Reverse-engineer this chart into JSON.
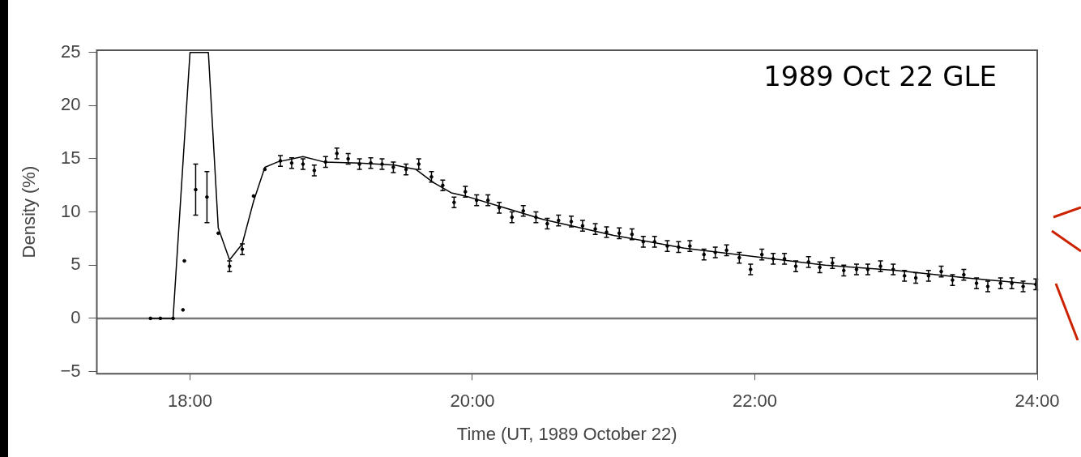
{
  "chart_data": {
    "type": "scatter",
    "xlabel": "Time (UT, 1989 October 22)",
    "ylabel": "Density (%)",
    "annotations": [
      "1989 Oct 22 GLE"
    ],
    "xlim": [
      17.34,
      24
    ],
    "ylim": [
      -5.2,
      25.2
    ],
    "xticks": [
      {
        "value": 18,
        "label": "18:00"
      },
      {
        "value": 20,
        "label": "20:00"
      },
      {
        "value": 22,
        "label": "22:00"
      },
      {
        "value": 24,
        "label": "24:00"
      }
    ],
    "yticks": [
      -5,
      0,
      5,
      10,
      15,
      20,
      25
    ],
    "grid": false,
    "legend": false,
    "ref_lines": [
      {
        "axis": "y",
        "value": 0,
        "color": "#777777"
      }
    ],
    "series": [
      {
        "color": "#000000",
        "marker": "circle",
        "x": [
          17.72,
          17.79,
          17.88,
          17.95,
          17.96,
          18.04,
          18.12,
          18.2,
          18.28,
          18.37,
          18.45,
          18.53,
          18.64,
          18.72,
          18.8,
          18.88,
          18.96,
          19.04,
          19.12,
          19.2,
          19.28,
          19.36,
          19.44,
          19.53,
          19.62,
          19.71,
          19.79,
          19.87,
          19.95,
          20.03,
          20.11,
          20.19,
          20.28,
          20.36,
          20.45,
          20.53,
          20.61,
          20.7,
          20.78,
          20.87,
          20.95,
          21.04,
          21.13,
          21.21,
          21.29,
          21.38,
          21.46,
          21.54,
          21.64,
          21.72,
          21.8,
          21.89,
          21.97,
          22.05,
          22.13,
          22.21,
          22.29,
          22.38,
          22.46,
          22.55,
          22.63,
          22.72,
          22.8,
          22.89,
          22.98,
          23.06,
          23.14,
          23.23,
          23.32,
          23.4,
          23.48,
          23.57,
          23.65,
          23.74,
          23.82,
          23.9,
          23.99
        ],
        "values": [
          0,
          0,
          0,
          0.8,
          5.4,
          12.1,
          11.4,
          8.0,
          4.9,
          6.5,
          11.5,
          14.0,
          14.8,
          14.6,
          14.5,
          13.9,
          14.7,
          15.5,
          15.0,
          14.5,
          14.6,
          14.5,
          14.2,
          14.0,
          14.5,
          13.3,
          12.5,
          10.9,
          11.9,
          11.1,
          11.1,
          10.4,
          9.5,
          10.1,
          9.5,
          8.9,
          9.2,
          9.1,
          8.7,
          8.4,
          8.1,
          8.0,
          7.9,
          7.2,
          7.2,
          6.8,
          6.7,
          6.8,
          6.0,
          6.2,
          6.4,
          5.7,
          4.6,
          6.0,
          5.6,
          5.6,
          4.9,
          5.3,
          4.8,
          5.2,
          4.5,
          4.6,
          4.6,
          4.9,
          4.6,
          4.0,
          3.8,
          4.0,
          4.4,
          3.6,
          4.1,
          3.3,
          3.0,
          3.3,
          3.3,
          3.0,
          3.2
        ],
        "errors": [
          null,
          null,
          null,
          null,
          null,
          2.4,
          2.4,
          null,
          0.5,
          0.5,
          null,
          null,
          0.5,
          0.5,
          0.5,
          0.5,
          0.5,
          0.5,
          0.5,
          0.5,
          0.5,
          0.5,
          0.5,
          0.5,
          0.5,
          0.5,
          0.5,
          0.5,
          0.5,
          0.5,
          0.5,
          0.5,
          0.5,
          0.5,
          0.5,
          0.5,
          0.5,
          0.5,
          0.5,
          0.5,
          0.5,
          0.5,
          0.5,
          0.5,
          0.5,
          0.5,
          0.5,
          0.5,
          0.5,
          0.5,
          0.5,
          0.5,
          0.5,
          0.5,
          0.5,
          0.5,
          0.5,
          0.5,
          0.5,
          0.5,
          0.5,
          0.5,
          0.5,
          0.5,
          0.5,
          0.5,
          0.5,
          0.5,
          0.5,
          0.5,
          0.5,
          0.5,
          0.5,
          0.5,
          0.5,
          0.5,
          0.5
        ]
      },
      {
        "type": "line",
        "color": "#000000",
        "line_style": "solid",
        "marker": "none",
        "x": [
          17.72,
          17.88,
          18.0,
          18.13,
          18.2,
          18.28,
          18.37,
          18.45,
          18.53,
          18.62,
          18.8,
          18.95,
          19.2,
          19.45,
          19.6,
          19.72,
          19.85,
          19.95,
          20.2,
          20.5,
          21.0,
          21.5,
          22.0,
          22.5,
          23.0,
          23.5,
          24.0
        ],
        "values": [
          0,
          0,
          25,
          25,
          8.5,
          5.5,
          7,
          11,
          14.2,
          14.7,
          15.2,
          14.7,
          14.6,
          14.4,
          14.0,
          12.8,
          11.8,
          11.5,
          10.5,
          9.3,
          7.8,
          6.6,
          5.8,
          5.0,
          4.5,
          3.8,
          3.2
        ]
      }
    ]
  }
}
